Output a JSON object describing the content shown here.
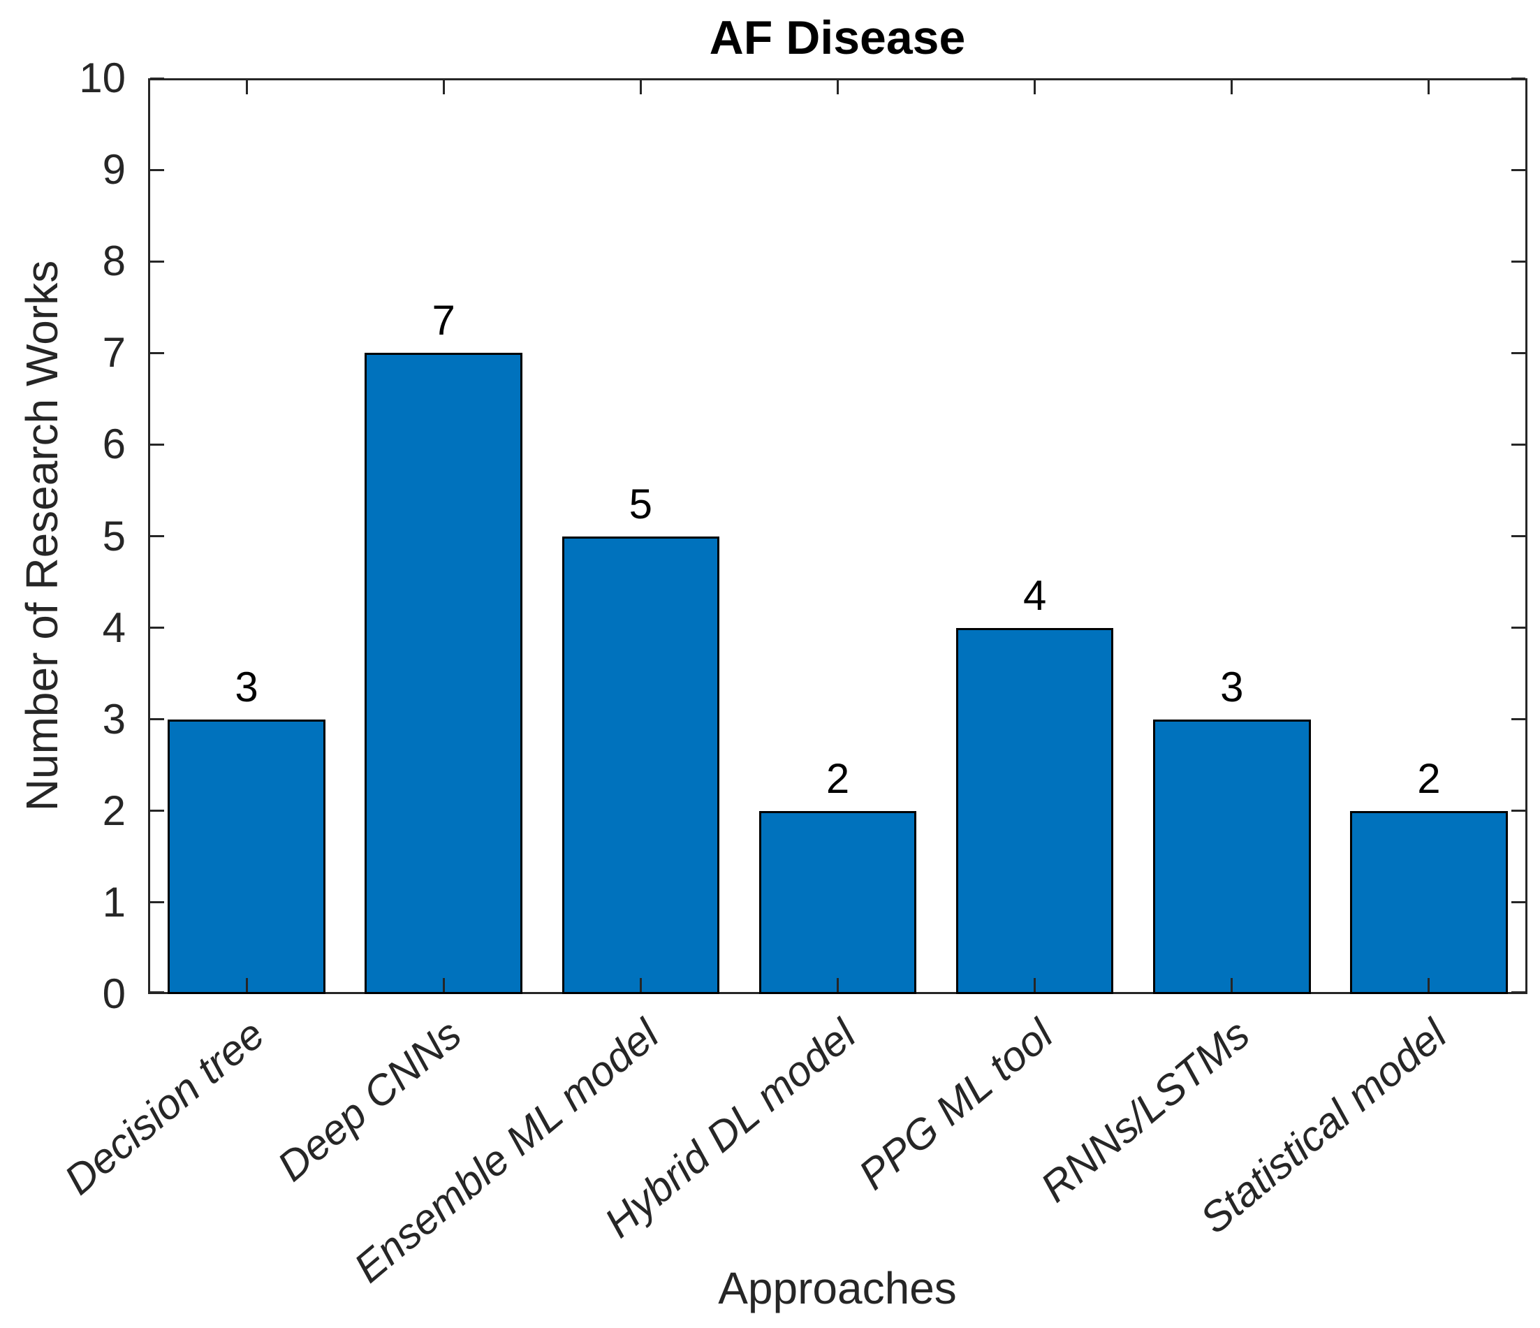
{
  "chart_data": {
    "type": "bar",
    "title": "AF Disease",
    "xlabel": "Approaches",
    "ylabel": "Number of Research Works",
    "categories": [
      "Decision tree",
      "Deep CNNs",
      "Ensemble ML model",
      "Hybrid DL model",
      "PPG ML tool",
      "RNNs/LSTMs",
      "Statistical model"
    ],
    "values": [
      3,
      7,
      5,
      2,
      4,
      3,
      2
    ],
    "bar_labels": [
      "3",
      "7",
      "5",
      "2",
      "4",
      "3",
      "2"
    ],
    "ylim": [
      0,
      10
    ],
    "yticks": [
      0,
      1,
      2,
      3,
      4,
      5,
      6,
      7,
      8,
      9,
      10
    ],
    "grid": false,
    "legend": null,
    "bar_color": "#0072BD",
    "bar_edge_color": "#000000",
    "axis_color": "#262626",
    "text_color": "#000000",
    "bar_width_fraction": 0.8,
    "xtick_rotation_deg": 40,
    "xtick_style": "italic",
    "ticks_direction": "in",
    "box": true
  }
}
